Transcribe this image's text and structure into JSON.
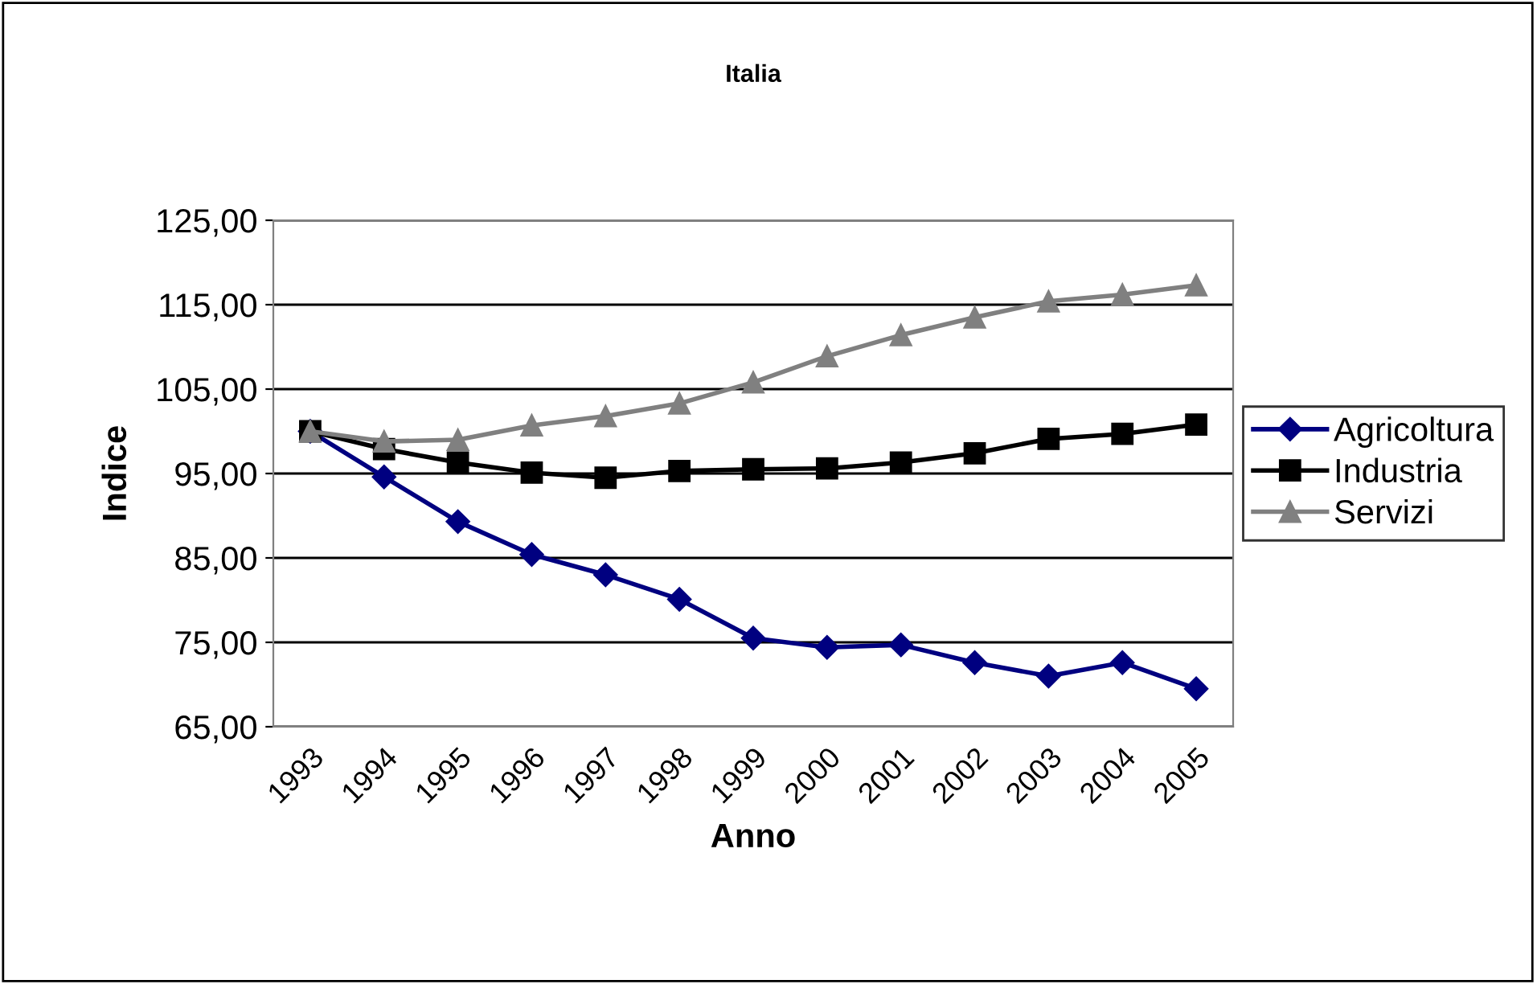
{
  "chart_data": {
    "type": "line",
    "title": "Italia",
    "xlabel": "Anno",
    "ylabel": "Indice",
    "categories": [
      "1993",
      "1994",
      "1995",
      "1996",
      "1997",
      "1998",
      "1999",
      "2000",
      "2001",
      "2002",
      "2003",
      "2004",
      "2005"
    ],
    "series": [
      {
        "name": "Agricoltura",
        "color": "#000080",
        "marker": "diamond",
        "values": [
          100,
          94.6,
          89.3,
          85.4,
          83.0,
          80.1,
          75.5,
          74.4,
          74.7,
          72.6,
          71.0,
          72.6,
          69.5
        ]
      },
      {
        "name": "Industria",
        "color": "#000000",
        "marker": "square",
        "values": [
          100,
          97.9,
          96.3,
          95.1,
          94.5,
          95.3,
          95.5,
          95.6,
          96.3,
          97.4,
          99.1,
          99.7,
          100.8
        ]
      },
      {
        "name": "Servizi",
        "color": "#808080",
        "marker": "triangle",
        "values": [
          100,
          98.8,
          99.0,
          100.7,
          101.8,
          103.3,
          105.8,
          108.9,
          111.4,
          113.5,
          115.4,
          116.2,
          117.3
        ]
      }
    ],
    "ylim": [
      65,
      125
    ],
    "yticks": [
      {
        "value": 65,
        "label": "65,00"
      },
      {
        "value": 75,
        "label": "75,00"
      },
      {
        "value": 85,
        "label": "85,00"
      },
      {
        "value": 95,
        "label": "95,00"
      },
      {
        "value": 105,
        "label": "105,00"
      },
      {
        "value": 115,
        "label": "115,00"
      },
      {
        "value": 125,
        "label": "125,00"
      }
    ],
    "grid": "y",
    "legend": "right",
    "line_style": "solid"
  }
}
